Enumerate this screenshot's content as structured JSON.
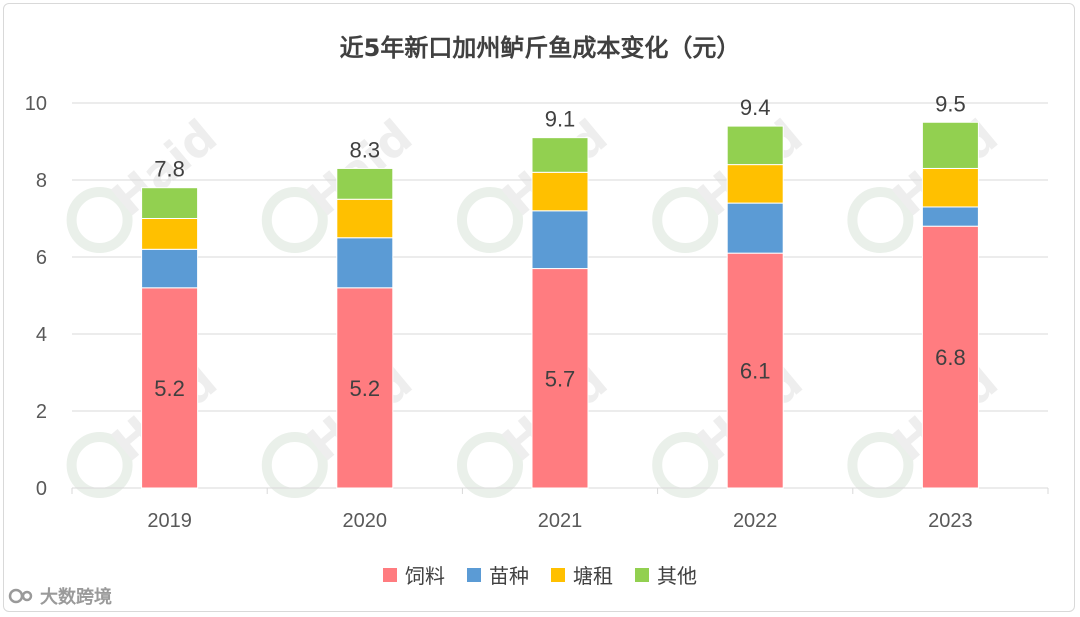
{
  "chart_data": {
    "type": "bar",
    "stacked": true,
    "title": "近5年新口加州鲈斤鱼成本变化（元）",
    "categories": [
      "2019",
      "2020",
      "2021",
      "2022",
      "2023"
    ],
    "series": [
      {
        "name": "饲料",
        "color": "#ff7c80",
        "values": [
          5.2,
          5.2,
          5.7,
          6.1,
          6.8
        ],
        "labels": [
          "5.2",
          "5.2",
          "5.7",
          "6.1",
          "6.8"
        ]
      },
      {
        "name": "苗种",
        "color": "#5b9bd5",
        "values": [
          1.0,
          1.3,
          1.5,
          1.3,
          0.5
        ]
      },
      {
        "name": "塘租",
        "color": "#ffc000",
        "values": [
          0.8,
          1.0,
          1.0,
          1.0,
          1.0
        ]
      },
      {
        "name": "其他",
        "color": "#92d050",
        "values": [
          0.8,
          0.8,
          0.9,
          1.0,
          1.2
        ]
      }
    ],
    "totals": [
      "7.8",
      "8.3",
      "9.1",
      "9.4",
      "9.5"
    ],
    "ylim": [
      0,
      10
    ],
    "yticks": [
      "0",
      "2",
      "4",
      "6",
      "8",
      "10"
    ],
    "grid": true,
    "legend_position": "bottom",
    "xlabel": "",
    "ylabel": ""
  },
  "watermark": {
    "text": "Haid"
  },
  "brand": {
    "name": "大数跨境"
  }
}
